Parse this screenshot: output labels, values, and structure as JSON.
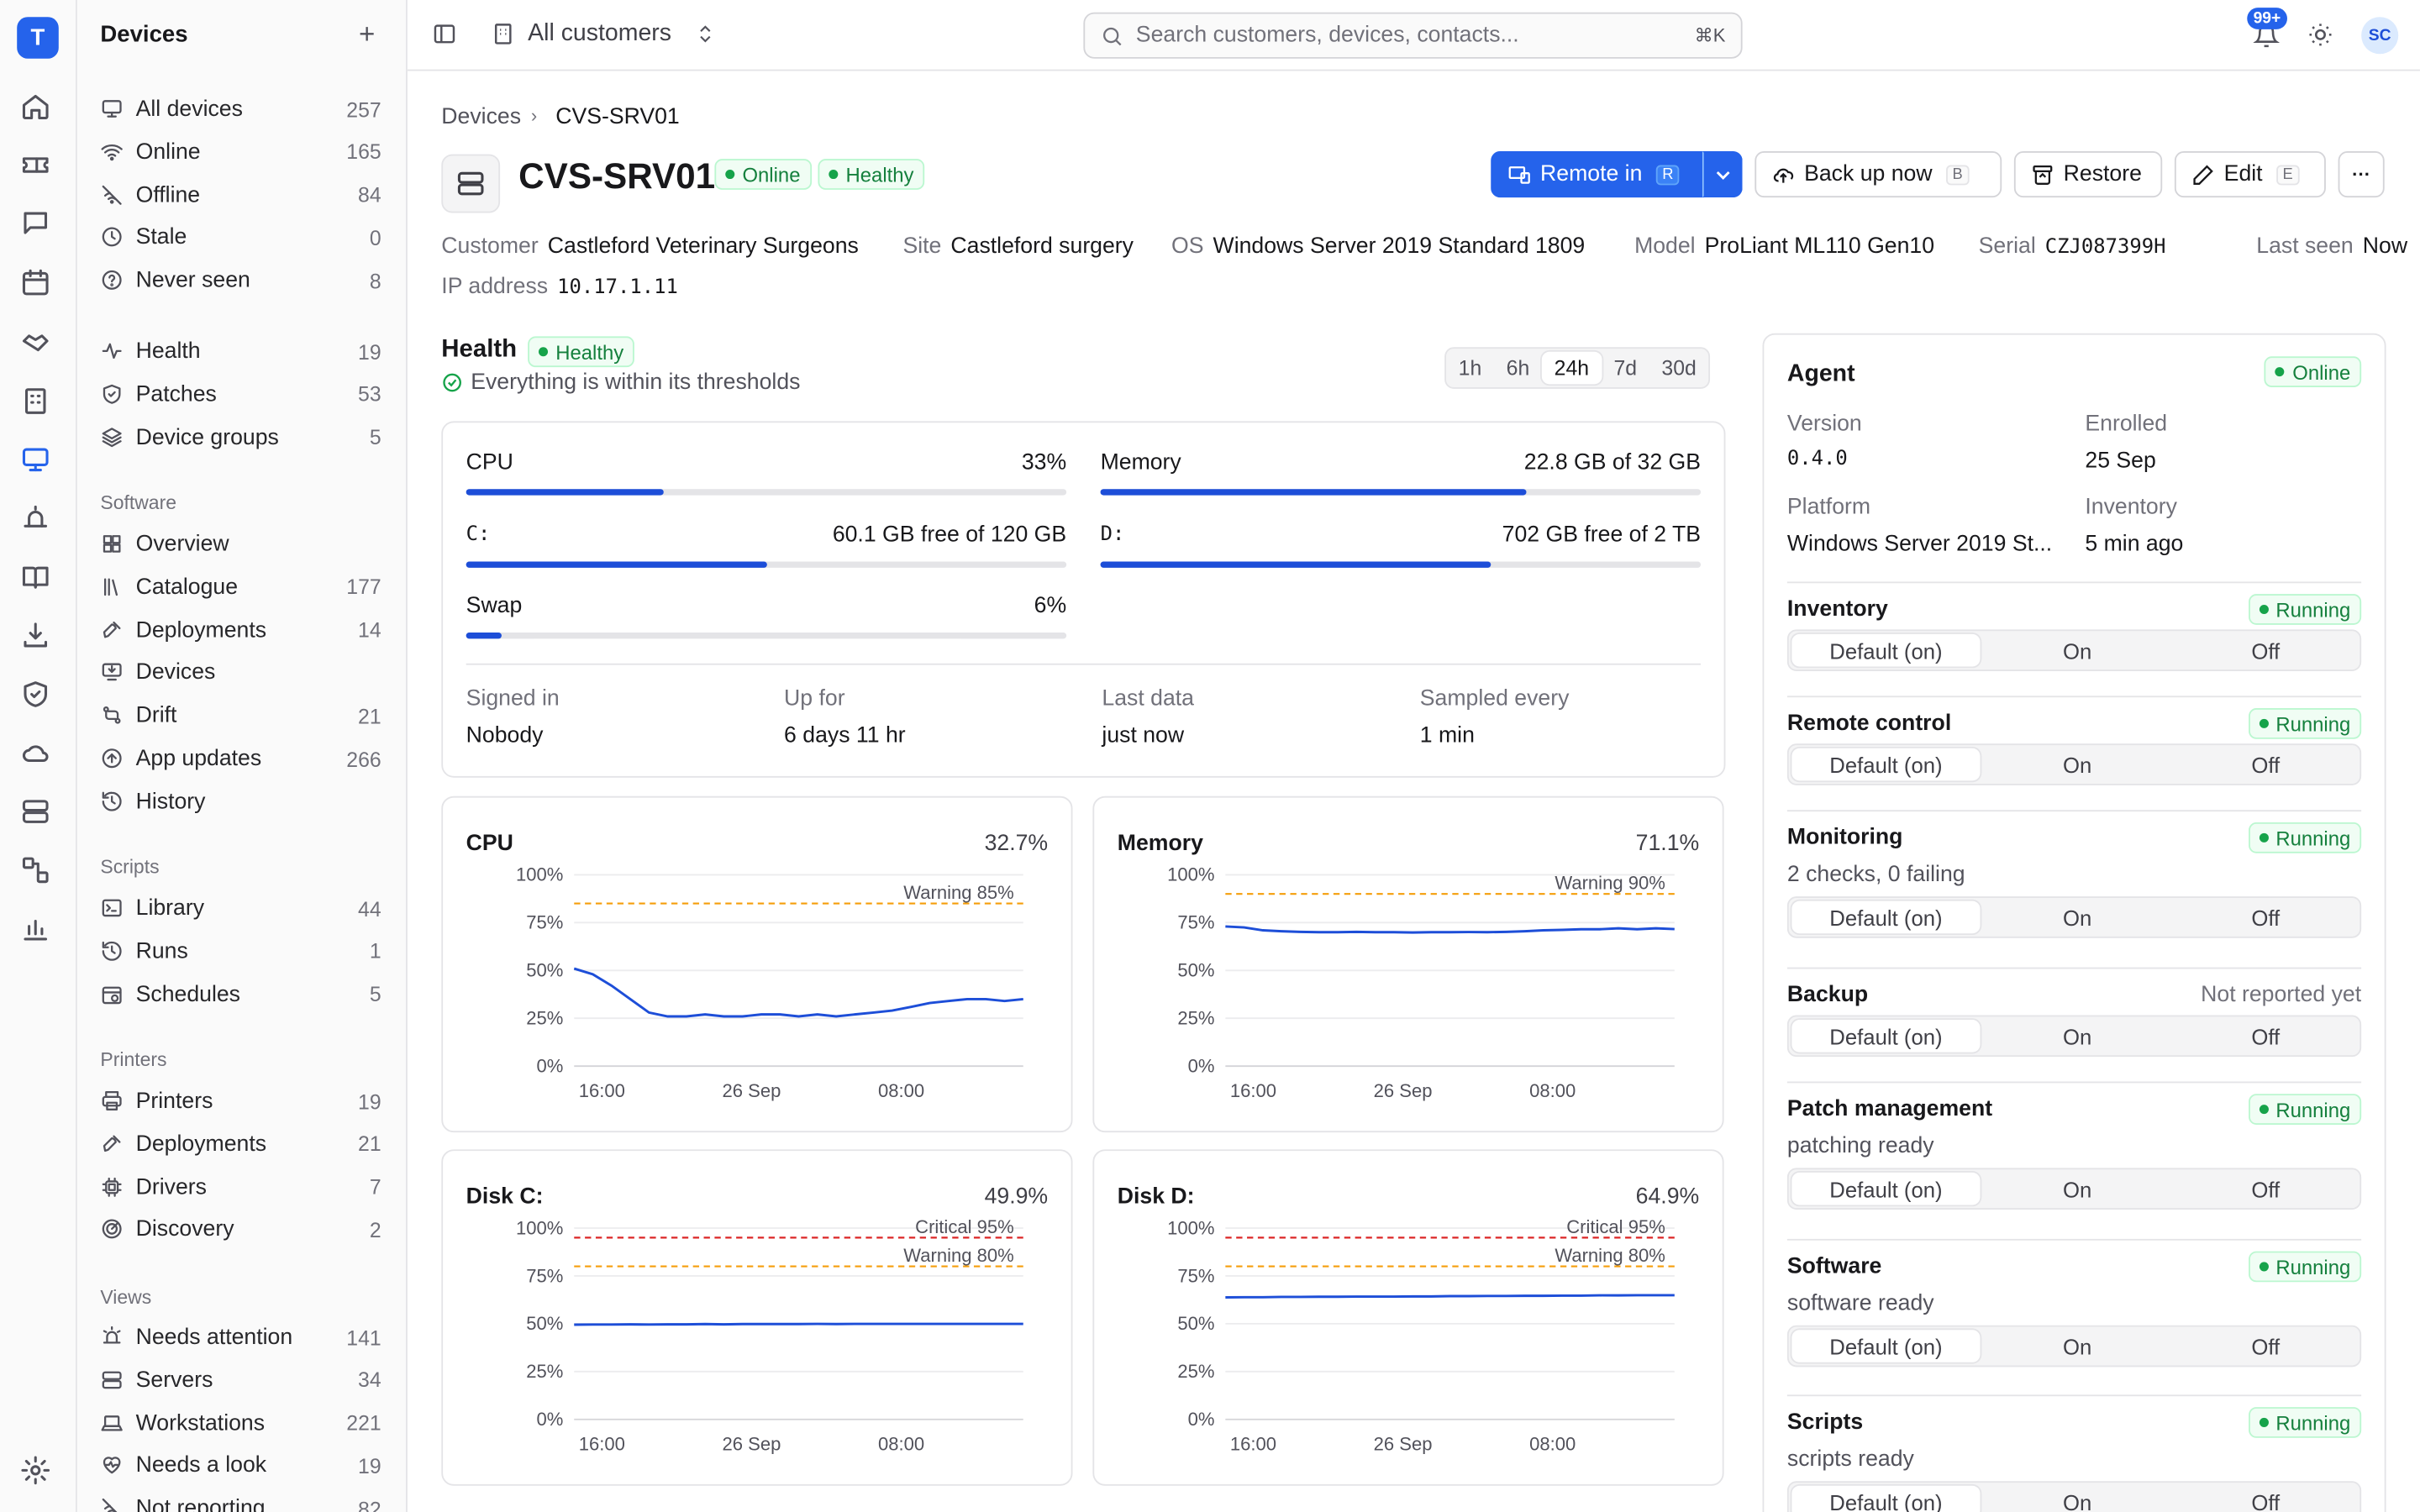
{
  "app": {
    "logo": "T"
  },
  "rail": {
    "icons": [
      "home-icon",
      "ticket-icon",
      "chat-icon",
      "calendar-icon",
      "handshake-icon",
      "building-icon",
      "monitor-icon",
      "alert-icon",
      "book-icon",
      "download-icon",
      "shield-icon",
      "cloud-icon",
      "server-icon",
      "flow-icon",
      "chart-icon",
      "settings-icon"
    ]
  },
  "sidebar": {
    "title": "Devices",
    "add": "+",
    "devices": [
      {
        "label": "All devices",
        "count": "257",
        "icon": "monitor-icon"
      },
      {
        "label": "Online",
        "count": "165",
        "icon": "wifi-icon"
      },
      {
        "label": "Offline",
        "count": "84",
        "icon": "wifi-off-icon"
      },
      {
        "label": "Stale",
        "count": "0",
        "icon": "clock-icon"
      },
      {
        "label": "Never seen",
        "count": "8",
        "icon": "help-icon"
      }
    ],
    "health": [
      {
        "label": "Health",
        "count": "19",
        "icon": "pulse-icon"
      },
      {
        "label": "Patches",
        "count": "53",
        "icon": "shield-check-icon"
      },
      {
        "label": "Device groups",
        "count": "5",
        "icon": "layers-icon"
      }
    ],
    "software_title": "Software",
    "software": [
      {
        "label": "Overview",
        "count": "",
        "icon": "grid-icon"
      },
      {
        "label": "Catalogue",
        "count": "177",
        "icon": "library-icon"
      },
      {
        "label": "Deployments",
        "count": "14",
        "icon": "rocket-icon"
      },
      {
        "label": "Devices",
        "count": "",
        "icon": "monitor-down-icon"
      },
      {
        "label": "Drift",
        "count": "21",
        "icon": "git-compare-icon"
      },
      {
        "label": "App updates",
        "count": "266",
        "icon": "arrow-up-circle-icon"
      },
      {
        "label": "History",
        "count": "",
        "icon": "history-icon"
      }
    ],
    "scripts_title": "Scripts",
    "scripts": [
      {
        "label": "Library",
        "count": "44",
        "icon": "terminal-icon"
      },
      {
        "label": "Runs",
        "count": "1",
        "icon": "history-icon"
      },
      {
        "label": "Schedules",
        "count": "5",
        "icon": "calendar-clock-icon"
      }
    ],
    "printers_title": "Printers",
    "printers": [
      {
        "label": "Printers",
        "count": "19",
        "icon": "printer-icon"
      },
      {
        "label": "Deployments",
        "count": "21",
        "icon": "rocket-icon"
      },
      {
        "label": "Drivers",
        "count": "7",
        "icon": "chip-icon"
      },
      {
        "label": "Discovery",
        "count": "2",
        "icon": "radar-icon"
      }
    ],
    "views_title": "Views",
    "views": [
      {
        "label": "Needs attention",
        "count": "141",
        "icon": "siren-icon"
      },
      {
        "label": "Servers",
        "count": "34",
        "icon": "server-icon"
      },
      {
        "label": "Workstations",
        "count": "221",
        "icon": "laptop-icon"
      },
      {
        "label": "Needs a look",
        "count": "19",
        "icon": "heart-pulse-icon"
      },
      {
        "label": "Not reporting",
        "count": "82",
        "icon": "wifi-off-icon"
      }
    ]
  },
  "topbar": {
    "scope": "All customers",
    "search_placeholder": "Search customers, devices, contacts...",
    "search_kbd": "⌘K",
    "notif_badge": "99+",
    "avatar": "SC"
  },
  "breadcrumb": {
    "parent": "Devices",
    "current": "CVS-SRV01"
  },
  "device": {
    "name": "CVS-SRV01",
    "status": "Online",
    "health": "Healthy"
  },
  "actions": {
    "remote": "Remote in",
    "remote_key": "R",
    "backup": "Back up now",
    "backup_key": "B",
    "restore": "Restore",
    "edit": "Edit",
    "edit_key": "E",
    "more": "···"
  },
  "meta": [
    {
      "label": "Customer",
      "value": "Castleford Veterinary Surgeons",
      "mono": false
    },
    {
      "label": "Site",
      "value": "Castleford surgery",
      "mono": false
    },
    {
      "label": "OS",
      "value": "Windows Server 2019 Standard 1809",
      "mono": false
    },
    {
      "label": "Model",
      "value": "ProLiant ML110 Gen10",
      "mono": false
    },
    {
      "label": "Serial",
      "value": "CZJ087399H",
      "mono": true
    },
    {
      "label": "Last seen",
      "value": "Now",
      "mono": false
    },
    {
      "label": "IP address",
      "value": "10.17.1.11",
      "mono": true
    }
  ],
  "health": {
    "title": "Health",
    "badge": "Healthy",
    "summary": "Everything is within its thresholds",
    "ranges": [
      "1h",
      "6h",
      "24h",
      "7d",
      "30d"
    ],
    "active_range": "24h"
  },
  "resources": [
    {
      "label": "CPU",
      "value": "33%",
      "fill": 0.33,
      "mono": false
    },
    {
      "label": "Memory",
      "value": "22.8 GB of 32 GB",
      "fill": 0.71,
      "mono": false
    },
    {
      "label": "C:",
      "value": "60.1 GB free of 120 GB",
      "fill": 0.5,
      "mono": true
    },
    {
      "label": "D:",
      "value": "702 GB free of 2 TB",
      "fill": 0.65,
      "mono": true
    },
    {
      "label": "Swap",
      "value": "6%",
      "fill": 0.06,
      "mono": false
    }
  ],
  "stats": [
    {
      "label": "Signed in",
      "value": "Nobody"
    },
    {
      "label": "Up for",
      "value": "6 days 11 hr"
    },
    {
      "label": "Last data",
      "value": "just now"
    },
    {
      "label": "Sampled every",
      "value": "1 min"
    }
  ],
  "charts": [
    {
      "title": "CPU",
      "current": "32.7%",
      "warning": 85,
      "warning_label": "Warning 85%",
      "critical": null,
      "critical_label": "",
      "trend": [
        51,
        48,
        42,
        35,
        28,
        26,
        26,
        27,
        26,
        26,
        27,
        27,
        26,
        27,
        26,
        27,
        28,
        29,
        31,
        33,
        34,
        35,
        35,
        34,
        35
      ]
    },
    {
      "title": "Memory",
      "current": "71.1%",
      "warning": 90,
      "warning_label": "Warning 90%",
      "critical": null,
      "critical_label": "",
      "trend": [
        73,
        72.5,
        71,
        70.5,
        70.2,
        70,
        70,
        70.2,
        70,
        70,
        69.8,
        70,
        70,
        70.1,
        70,
        70.2,
        70.5,
        71,
        71.2,
        71.5,
        71.5,
        72,
        71.5,
        72,
        71.6
      ]
    },
    {
      "title": "Disk C:",
      "current": "49.9%",
      "warning": 80,
      "warning_label": "Warning 80%",
      "critical": 95,
      "critical_label": "Critical 95%",
      "trend": [
        49.5,
        49.6,
        49.6,
        49.7,
        49.6,
        49.7,
        49.7,
        49.8,
        49.7,
        49.8,
        49.8,
        49.8,
        49.8,
        49.9,
        49.8,
        49.9,
        49.9,
        49.9,
        49.9,
        49.9,
        49.9,
        49.9,
        49.9,
        49.9,
        49.9
      ]
    },
    {
      "title": "Disk D:",
      "current": "64.9%",
      "warning": 80,
      "warning_label": "Warning 80%",
      "critical": 95,
      "critical_label": "Critical 95%",
      "trend": [
        63.8,
        63.9,
        63.9,
        64.0,
        64.0,
        64.1,
        64.1,
        64.2,
        64.2,
        64.2,
        64.3,
        64.3,
        64.4,
        64.4,
        64.5,
        64.5,
        64.6,
        64.6,
        64.7,
        64.7,
        64.8,
        64.8,
        64.9,
        64.9,
        64.9
      ]
    }
  ],
  "chart_axes": {
    "y_ticks": [
      "100%",
      "75%",
      "50%",
      "25%",
      "0%"
    ],
    "x_ticks": [
      "16:00",
      "26 Sep",
      "08:00"
    ]
  },
  "agent": {
    "title": "Agent",
    "status": "Online",
    "version_label": "Version",
    "version": "0.4.0",
    "enrolled_label": "Enrolled",
    "enrolled": "25 Sep",
    "platform_label": "Platform",
    "platform": "Windows Server 2019 St...",
    "inventory_label": "Inventory",
    "inventory": "5 min ago"
  },
  "modules": [
    {
      "name": "Inventory",
      "status": "Running",
      "note": ""
    },
    {
      "name": "Remote control",
      "status": "Running",
      "note": ""
    },
    {
      "name": "Monitoring",
      "status": "Running",
      "note": "2 checks, 0 failing"
    },
    {
      "name": "Backup",
      "status": "Not reported yet",
      "note": ""
    },
    {
      "name": "Patch management",
      "status": "Running",
      "note": "patching ready"
    },
    {
      "name": "Software",
      "status": "Running",
      "note": "software ready"
    },
    {
      "name": "Scripts",
      "status": "Running",
      "note": "scripts ready"
    }
  ],
  "module_options": [
    "Default (on)",
    "On",
    "Off"
  ],
  "colors": {
    "accent": "#2563eb",
    "line": "#1d4ed8",
    "warning": "#f59e0b",
    "critical": "#dc2626",
    "ok": "#16a34a"
  }
}
